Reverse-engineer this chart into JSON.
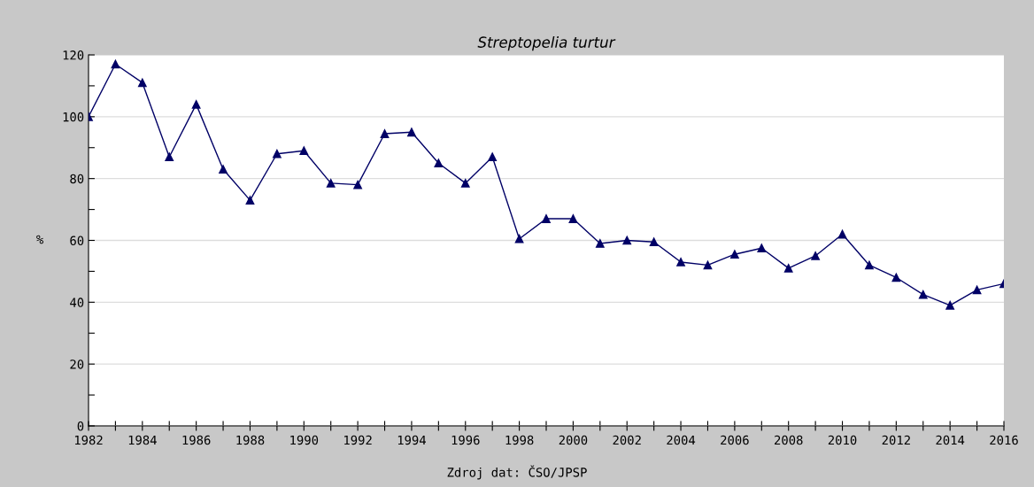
{
  "chart_data": {
    "type": "line",
    "title": "Streptopelia turtur",
    "ylabel": "%",
    "annotations": [
      "Zdroj dat: ČSO/JPSP"
    ],
    "x": [
      1982,
      1983,
      1984,
      1985,
      1986,
      1987,
      1988,
      1989,
      1990,
      1991,
      1992,
      1993,
      1994,
      1995,
      1996,
      1997,
      1998,
      1999,
      2000,
      2001,
      2002,
      2003,
      2004,
      2005,
      2006,
      2007,
      2008,
      2009,
      2010,
      2011,
      2012,
      2013,
      2014,
      2015,
      2016
    ],
    "series": [
      {
        "color": "#000066",
        "values": [
          100,
          117,
          111,
          87,
          104,
          83,
          73,
          88,
          89,
          78.5,
          78,
          94.5,
          95,
          85,
          78.5,
          87,
          60.5,
          67,
          67,
          59,
          60,
          59.5,
          53,
          52,
          55.5,
          57.5,
          51,
          55,
          62,
          52,
          48,
          42.5,
          39,
          44,
          46
        ]
      }
    ],
    "xlim": [
      1982,
      2016
    ],
    "xticks": [
      1982,
      {
        "value": 1983,
        "label": null
      },
      1984,
      {
        "value": 1985,
        "label": null
      },
      1986,
      {
        "value": 1987,
        "label": null
      },
      1988,
      {
        "value": 1989,
        "label": null
      },
      1990,
      {
        "value": 1991,
        "label": null
      },
      1992,
      {
        "value": 1993,
        "label": null
      },
      1994,
      {
        "value": 1995,
        "label": null
      },
      1996,
      {
        "value": 1997,
        "label": null
      },
      1998,
      {
        "value": 1999,
        "label": null
      },
      2000,
      {
        "value": 2001,
        "label": null
      },
      2002,
      {
        "value": 2003,
        "label": null
      },
      2004,
      {
        "value": 2005,
        "label": null
      },
      2006,
      {
        "value": 2007,
        "label": null
      },
      2008,
      {
        "value": 2009,
        "label": null
      },
      2010,
      {
        "value": 2011,
        "label": null
      },
      2012,
      {
        "value": 2013,
        "label": null
      },
      2014,
      {
        "value": 2015,
        "label": null
      },
      2016
    ],
    "ylim": [
      0,
      120
    ],
    "yticks": [
      0,
      {
        "value": 10,
        "label": null
      },
      20,
      {
        "value": 30,
        "label": null
      },
      40,
      {
        "value": 50,
        "label": null
      },
      60,
      {
        "value": 70,
        "label": null
      },
      80,
      {
        "value": 90,
        "label": null
      },
      100,
      {
        "value": 110,
        "label": null
      },
      120
    ],
    "grid": "y",
    "marker": "triangle",
    "line_style": "solid"
  }
}
